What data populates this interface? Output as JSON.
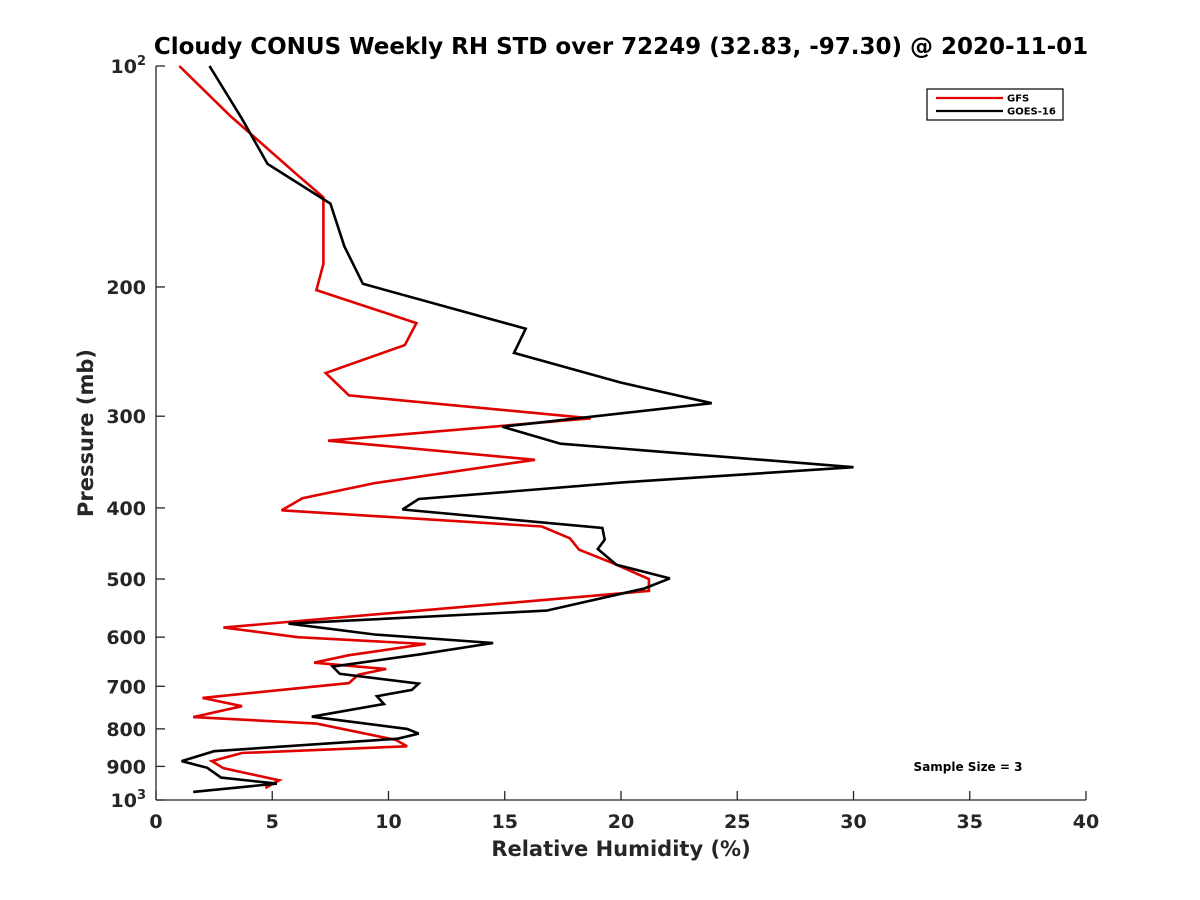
{
  "chart_data": {
    "type": "line",
    "title": "Cloudy CONUS Weekly RH STD over 72249 (32.83, -97.30) @ 2020-11-01",
    "xlabel": "Relative Humidity (%)",
    "ylabel": "Pressure (mb)",
    "xlim": [
      0,
      40
    ],
    "ylim": [
      100,
      1000
    ],
    "yscale": "log",
    "y_reversed": true,
    "x_ticks": [
      0,
      5,
      10,
      15,
      20,
      25,
      30,
      35,
      40
    ],
    "x_tick_labels": [
      "0",
      "5",
      "10",
      "15",
      "20",
      "25",
      "30",
      "35",
      "40"
    ],
    "y_ticks": [
      200,
      300,
      400,
      500,
      600,
      700,
      800,
      900
    ],
    "y_tick_labels": [
      "200",
      "300",
      "400",
      "500",
      "600",
      "700",
      "800",
      "900"
    ],
    "y_end_labels": [
      {
        "value": 100,
        "base": "10",
        "exp": "2"
      },
      {
        "value": 1000,
        "base": "10",
        "exp": "3"
      }
    ],
    "grid": false,
    "legend": "top-right",
    "annotation": "Sample Size = 3",
    "series": [
      {
        "name": "GFS",
        "color": "#e00000",
        "points": [
          [
            1.0,
            100
          ],
          [
            3.2,
            117
          ],
          [
            6.0,
            140
          ],
          [
            7.2,
            151
          ],
          [
            7.2,
            175
          ],
          [
            7.2,
            186
          ],
          [
            6.9,
            202
          ],
          [
            11.2,
            224
          ],
          [
            10.7,
            240
          ],
          [
            7.3,
            262
          ],
          [
            8.3,
            281
          ],
          [
            18.7,
            302
          ],
          [
            7.4,
            324
          ],
          [
            16.3,
            344
          ],
          [
            9.4,
            370
          ],
          [
            6.3,
            388
          ],
          [
            5.4,
            403
          ],
          [
            16.6,
            424
          ],
          [
            17.8,
            440
          ],
          [
            18.2,
            456
          ],
          [
            19.6,
            475
          ],
          [
            21.2,
            500
          ],
          [
            21.2,
            519
          ],
          [
            2.9,
            582
          ],
          [
            6.1,
            600
          ],
          [
            11.6,
            613
          ],
          [
            8.3,
            635
          ],
          [
            6.8,
            650
          ],
          [
            9.9,
            663
          ],
          [
            8.7,
            675
          ],
          [
            8.3,
            693
          ],
          [
            2.0,
            726
          ],
          [
            3.7,
            745
          ],
          [
            1.6,
            771
          ],
          [
            6.9,
            787
          ],
          [
            10.3,
            828
          ],
          [
            10.8,
            845
          ],
          [
            3.7,
            863
          ],
          [
            2.4,
            885
          ],
          [
            2.9,
            905
          ],
          [
            5.3,
            940
          ],
          [
            4.7,
            963
          ]
        ]
      },
      {
        "name": "GOES-16",
        "color": "#000000",
        "points": [
          [
            2.3,
            100
          ],
          [
            3.7,
            118
          ],
          [
            4.8,
            136
          ],
          [
            7.5,
            154
          ],
          [
            8.1,
            176
          ],
          [
            8.9,
            198
          ],
          [
            15.9,
            228
          ],
          [
            15.4,
            246
          ],
          [
            20.0,
            270
          ],
          [
            23.9,
            288
          ],
          [
            14.9,
            310
          ],
          [
            17.4,
            327
          ],
          [
            30.0,
            352
          ],
          [
            20.2,
            369
          ],
          [
            11.3,
            389
          ],
          [
            10.6,
            402
          ],
          [
            19.2,
            426
          ],
          [
            19.3,
            442
          ],
          [
            19.0,
            455
          ],
          [
            19.8,
            478
          ],
          [
            22.1,
            499
          ],
          [
            21.0,
            515
          ],
          [
            16.8,
            552
          ],
          [
            5.7,
            575
          ],
          [
            9.4,
            595
          ],
          [
            14.5,
            611
          ],
          [
            11.4,
            633
          ],
          [
            7.6,
            658
          ],
          [
            7.9,
            673
          ],
          [
            11.3,
            694
          ],
          [
            11.0,
            708
          ],
          [
            9.5,
            722
          ],
          [
            9.8,
            740
          ],
          [
            6.7,
            770
          ],
          [
            10.8,
            800
          ],
          [
            11.3,
            812
          ],
          [
            10.4,
            825
          ],
          [
            2.5,
            858
          ],
          [
            1.1,
            885
          ],
          [
            2.2,
            904
          ],
          [
            2.8,
            932
          ],
          [
            5.2,
            950
          ],
          [
            1.6,
            975
          ]
        ]
      }
    ]
  }
}
